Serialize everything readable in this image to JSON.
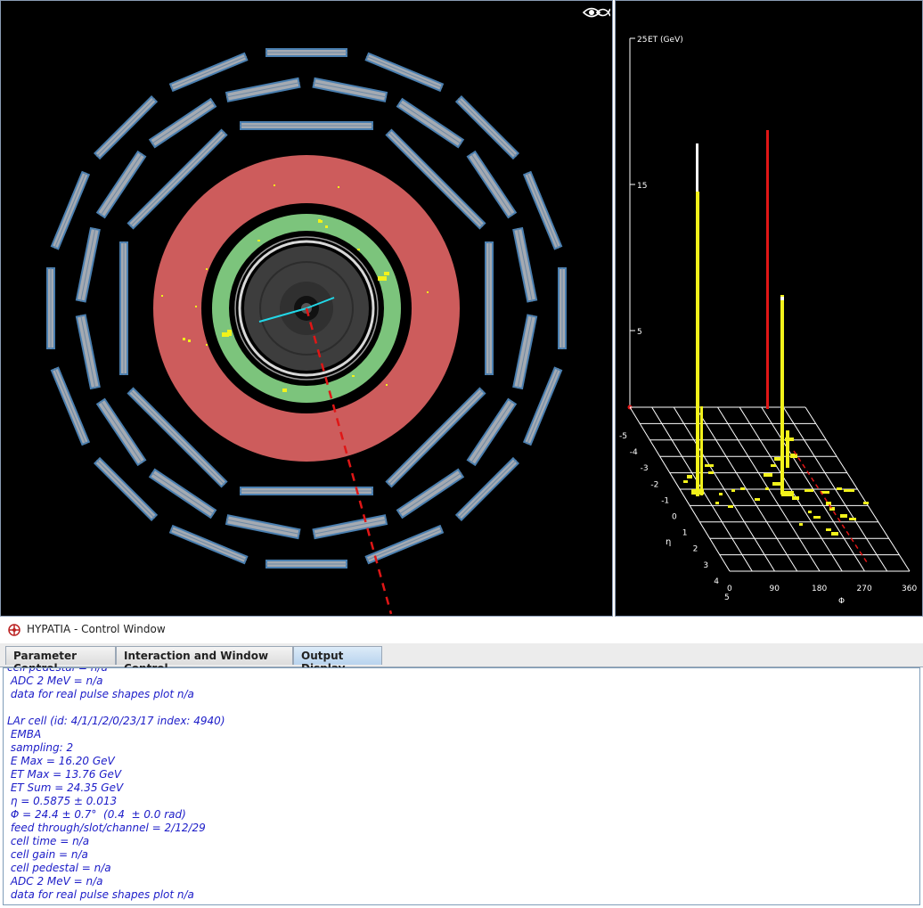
{
  "window_title": "HYPATIA - Control Window",
  "tabs": [
    {
      "label": "Parameter Control"
    },
    {
      "label": "Interaction and Window Control"
    },
    {
      "label": "Output Display"
    }
  ],
  "active_tab": "Output Display",
  "lego_plot": {
    "z_axis_label": "ET (GeV)",
    "z_ticks": [
      "25",
      "15",
      "5"
    ],
    "eta_label": "η",
    "eta_ticks": [
      "-5",
      "-4",
      "-3",
      "-2",
      "-1",
      "0",
      "1",
      "2",
      "3",
      "4",
      "5"
    ],
    "phi_label": "Φ",
    "phi_ticks": [
      "0",
      "90",
      "180",
      "270",
      "360"
    ]
  },
  "output_lines": [
    "cell pedestal = n/a",
    " ADC 2 MeV = n/a",
    " data for real pulse shapes plot n/a",
    "",
    "LAr cell (id: 4/1/1/2/0/23/17 index: 4940)",
    " EMBA",
    " sampling: 2",
    " E Max = 16.20 GeV",
    " ET Max = 13.76 GeV",
    " ET Sum = 24.35 GeV",
    " η = 0.5875 ± 0.013",
    " Φ = 24.4 ± 0.7°  (0.4  ± 0.0 rad)",
    " feed through/slot/channel = 2/12/29",
    " cell time = n/a",
    " cell gain = n/a",
    " cell pedestal = n/a",
    " ADC 2 MeV = n/a",
    " data for real pulse shapes plot n/a"
  ],
  "colors": {
    "calorimeter_red": "#cd5c5c",
    "calorimeter_green": "#7cc47c",
    "muon_chamber_blue": "#4a7fb0",
    "muon_chamber_grey": "#a4aab2",
    "energy_yellow": "#f2f21a",
    "text_blue": "#1c1cc8"
  }
}
